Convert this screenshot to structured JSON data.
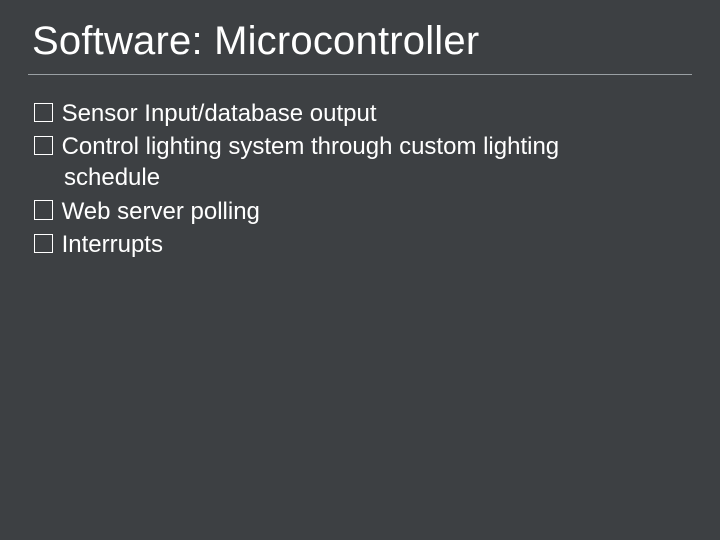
{
  "slide": {
    "background_color": "#3d4043",
    "text_color": "#ffffff",
    "title": "Software: Microcontroller",
    "title_fontsize": 40,
    "divider_color": "#9aa0a4",
    "body_fontsize": 24,
    "bullet_style": "hollow-square",
    "bullet_border_color": "#ffffff",
    "items": [
      "Sensor Input/database output",
      "Control lighting system through custom lighting schedule",
      "Web server polling",
      "Interrupts"
    ]
  }
}
